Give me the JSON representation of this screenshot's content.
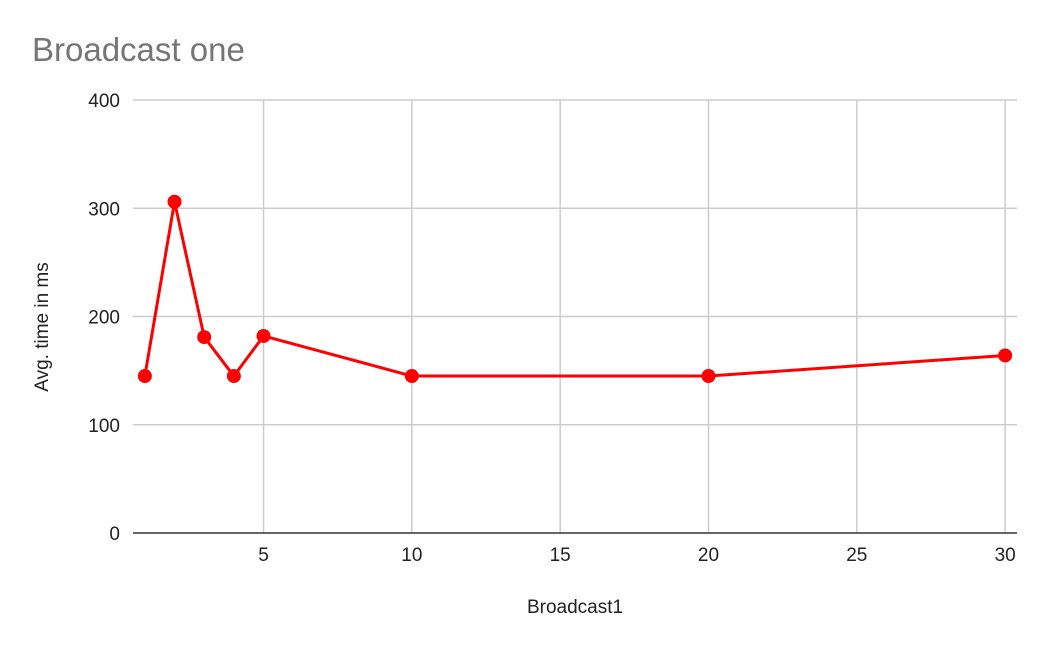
{
  "chart_data": {
    "type": "line",
    "title": "Broadcast one",
    "xlabel": "Broadcast1",
    "ylabel": "Avg. time in ms",
    "xlim": [
      0.6,
      30.4
    ],
    "ylim": [
      0,
      400
    ],
    "x_ticks": [
      5,
      10,
      15,
      20,
      25,
      30
    ],
    "y_ticks": [
      0,
      100,
      200,
      300,
      400
    ],
    "grid": true,
    "legend": "none",
    "series": [
      {
        "color": "#ff0000",
        "x": [
          1,
          2,
          3,
          4,
          5,
          10,
          20,
          30
        ],
        "y": [
          145,
          306,
          181,
          145,
          182,
          145,
          145,
          164
        ]
      }
    ]
  }
}
